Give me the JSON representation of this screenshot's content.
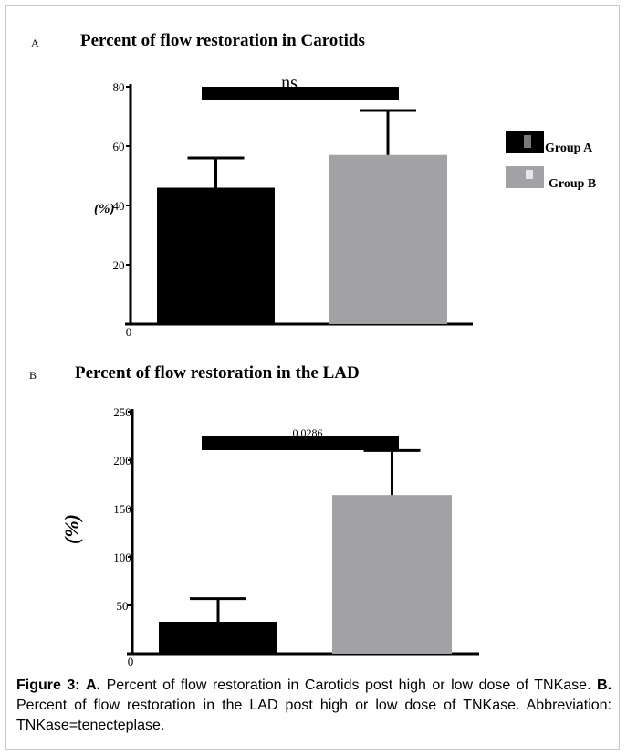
{
  "figure": {
    "caption": {
      "label": "Figure 3:",
      "a_label": "A.",
      "a_text": "Percent of flow restoration in Carotids post high or low dose of TNKase.",
      "b_label": "B.",
      "b_text": "Percent of flow restoration in the LAD post high or low dose of TNKase. Abbreviation: TNKase=tenecteplase."
    }
  },
  "legend": {
    "items": [
      {
        "label": "Group A",
        "color": "#000000"
      },
      {
        "label": "Group B",
        "color": "#a2a1a6"
      }
    ]
  },
  "chart_data": [
    {
      "type": "bar",
      "panel_label": "A",
      "title": "Percent of flow restoration in Carotids",
      "ylabel": "(%)",
      "ylim": [
        0,
        80
      ],
      "yticks": [
        "0",
        "20",
        "40",
        "60",
        "80"
      ],
      "categories": [
        "Group A",
        "Group B"
      ],
      "values": [
        46,
        57
      ],
      "error_bars": [
        10,
        15
      ],
      "colors": [
        "#000000",
        "#a2a1a6"
      ],
      "significance": "ns"
    },
    {
      "type": "bar",
      "panel_label": "B",
      "title": "Percent of flow restoration in the LAD",
      "ylabel": "(%)",
      "ylim": [
        0,
        250
      ],
      "yticks": [
        "0",
        "50",
        "100",
        "150",
        "200",
        "250"
      ],
      "categories": [
        "Group A",
        "Group B"
      ],
      "values": [
        33,
        164
      ],
      "error_bars": [
        24,
        46
      ],
      "colors": [
        "#000000",
        "#a2a1a6"
      ],
      "significance": "0.0286"
    }
  ]
}
